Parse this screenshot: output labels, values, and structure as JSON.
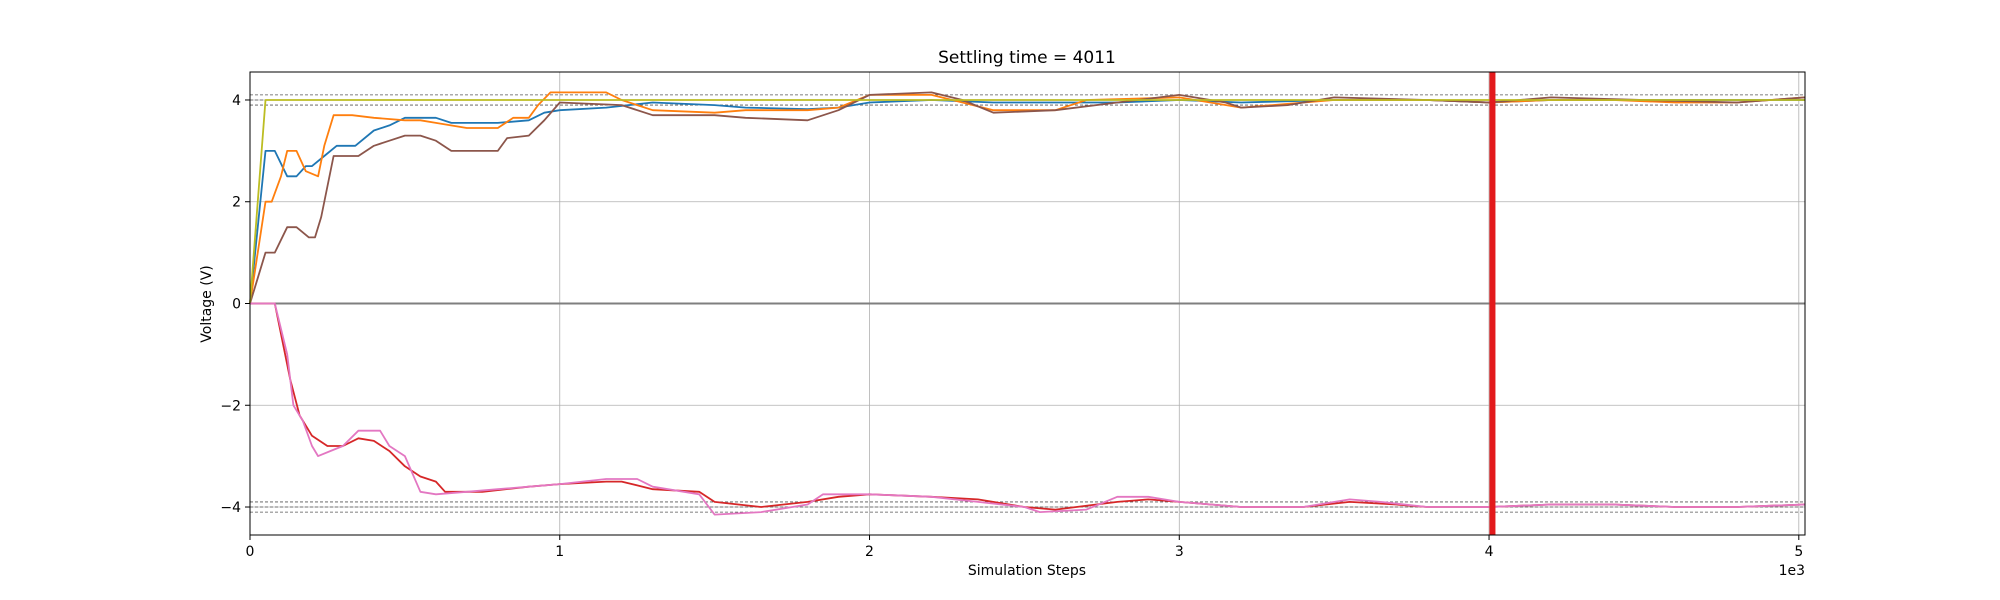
{
  "chart_data": {
    "type": "line",
    "title": "Settling time = 4011",
    "xlabel": "Simulation Steps",
    "ylabel": "Voltage (V)",
    "x_scale_label": "1e3",
    "xlim": [
      0,
      5.02
    ],
    "ylim": [
      -4.55,
      4.55
    ],
    "grid": true,
    "legend": "none",
    "x_ticks": [
      0,
      1,
      2,
      3,
      4,
      5
    ],
    "x_tick_labels": [
      "0",
      "1",
      "2",
      "3",
      "4",
      "5"
    ],
    "y_ticks": [
      -4,
      -2,
      0,
      2,
      4
    ],
    "y_tick_labels": [
      "−4",
      "−2",
      "0",
      "2",
      "4"
    ],
    "zero_line": 0,
    "settling_marker": {
      "x": 4.011,
      "color": "#e31a1c"
    },
    "tolerance_lines": [
      4.1,
      4.0,
      3.9,
      -3.9,
      -4.0,
      -4.1
    ],
    "series": [
      {
        "color": "#1f77b4",
        "points": [
          [
            0,
            0
          ],
          [
            0.05,
            3
          ],
          [
            0.08,
            3
          ],
          [
            0.12,
            2.5
          ],
          [
            0.15,
            2.5
          ],
          [
            0.18,
            2.7
          ],
          [
            0.2,
            2.7
          ],
          [
            0.24,
            2.9
          ],
          [
            0.28,
            3.1
          ],
          [
            0.34,
            3.1
          ],
          [
            0.4,
            3.4
          ],
          [
            0.45,
            3.5
          ],
          [
            0.5,
            3.65
          ],
          [
            0.6,
            3.65
          ],
          [
            0.65,
            3.55
          ],
          [
            0.75,
            3.55
          ],
          [
            0.8,
            3.55
          ],
          [
            0.9,
            3.6
          ],
          [
            0.95,
            3.75
          ],
          [
            1.0,
            3.8
          ],
          [
            1.15,
            3.85
          ],
          [
            1.3,
            3.95
          ],
          [
            1.5,
            3.9
          ],
          [
            1.6,
            3.85
          ],
          [
            1.8,
            3.82
          ],
          [
            1.9,
            3.85
          ],
          [
            2.0,
            3.95
          ],
          [
            2.2,
            4.0
          ],
          [
            2.4,
            3.95
          ],
          [
            2.6,
            3.95
          ],
          [
            2.8,
            3.95
          ],
          [
            3.0,
            4.0
          ],
          [
            3.2,
            3.95
          ],
          [
            3.5,
            4.0
          ],
          [
            3.8,
            4.0
          ],
          [
            4.0,
            3.95
          ],
          [
            4.2,
            4.0
          ],
          [
            4.5,
            4.0
          ],
          [
            4.8,
            4.0
          ],
          [
            5.02,
            4.0
          ]
        ]
      },
      {
        "color": "#ff7f0e",
        "points": [
          [
            0,
            0
          ],
          [
            0.05,
            2
          ],
          [
            0.07,
            2
          ],
          [
            0.1,
            2.5
          ],
          [
            0.12,
            3
          ],
          [
            0.15,
            3
          ],
          [
            0.18,
            2.6
          ],
          [
            0.22,
            2.5
          ],
          [
            0.24,
            3.1
          ],
          [
            0.27,
            3.7
          ],
          [
            0.33,
            3.7
          ],
          [
            0.4,
            3.65
          ],
          [
            0.5,
            3.6
          ],
          [
            0.55,
            3.6
          ],
          [
            0.6,
            3.55
          ],
          [
            0.7,
            3.45
          ],
          [
            0.8,
            3.45
          ],
          [
            0.85,
            3.65
          ],
          [
            0.9,
            3.65
          ],
          [
            0.93,
            3.9
          ],
          [
            0.97,
            4.15
          ],
          [
            1.15,
            4.15
          ],
          [
            1.2,
            4.0
          ],
          [
            1.3,
            3.8
          ],
          [
            1.5,
            3.75
          ],
          [
            1.6,
            3.8
          ],
          [
            1.8,
            3.8
          ],
          [
            1.9,
            3.85
          ],
          [
            2.0,
            4.1
          ],
          [
            2.2,
            4.1
          ],
          [
            2.3,
            3.95
          ],
          [
            2.4,
            3.8
          ],
          [
            2.6,
            3.8
          ],
          [
            2.7,
            4.0
          ],
          [
            3.0,
            4.05
          ],
          [
            3.1,
            3.95
          ],
          [
            3.2,
            3.85
          ],
          [
            3.3,
            3.9
          ],
          [
            3.5,
            4.0
          ],
          [
            3.8,
            4.0
          ],
          [
            4.0,
            3.95
          ],
          [
            4.2,
            4.0
          ],
          [
            4.4,
            4.0
          ],
          [
            4.6,
            3.95
          ],
          [
            4.8,
            3.95
          ],
          [
            5.02,
            4.05
          ]
        ]
      },
      {
        "color": "#8c564b",
        "points": [
          [
            0,
            0
          ],
          [
            0.05,
            1
          ],
          [
            0.08,
            1
          ],
          [
            0.12,
            1.5
          ],
          [
            0.15,
            1.5
          ],
          [
            0.19,
            1.3
          ],
          [
            0.21,
            1.3
          ],
          [
            0.23,
            1.7
          ],
          [
            0.25,
            2.3
          ],
          [
            0.27,
            2.9
          ],
          [
            0.35,
            2.9
          ],
          [
            0.4,
            3.1
          ],
          [
            0.45,
            3.2
          ],
          [
            0.5,
            3.3
          ],
          [
            0.55,
            3.3
          ],
          [
            0.6,
            3.2
          ],
          [
            0.65,
            3.0
          ],
          [
            0.75,
            3.0
          ],
          [
            0.8,
            3.0
          ],
          [
            0.83,
            3.25
          ],
          [
            0.9,
            3.3
          ],
          [
            0.95,
            3.6
          ],
          [
            1.0,
            3.95
          ],
          [
            1.2,
            3.9
          ],
          [
            1.3,
            3.7
          ],
          [
            1.5,
            3.7
          ],
          [
            1.6,
            3.65
          ],
          [
            1.8,
            3.6
          ],
          [
            1.9,
            3.8
          ],
          [
            2.0,
            4.1
          ],
          [
            2.2,
            4.15
          ],
          [
            2.3,
            4.0
          ],
          [
            2.4,
            3.75
          ],
          [
            2.6,
            3.8
          ],
          [
            2.8,
            3.95
          ],
          [
            3.0,
            4.1
          ],
          [
            3.15,
            3.95
          ],
          [
            3.2,
            3.85
          ],
          [
            3.35,
            3.9
          ],
          [
            3.5,
            4.05
          ],
          [
            3.8,
            4.0
          ],
          [
            4.0,
            3.95
          ],
          [
            4.2,
            4.05
          ],
          [
            4.5,
            4.0
          ],
          [
            4.8,
            3.95
          ],
          [
            5.02,
            4.05
          ]
        ]
      },
      {
        "color": "#bcbd22",
        "points": [
          [
            0,
            0
          ],
          [
            0.05,
            4
          ],
          [
            5.02,
            4
          ]
        ]
      },
      {
        "color": "#d62728",
        "points": [
          [
            0,
            0
          ],
          [
            0.08,
            0
          ],
          [
            0.13,
            -1.5
          ],
          [
            0.16,
            -2.2
          ],
          [
            0.2,
            -2.6
          ],
          [
            0.25,
            -2.8
          ],
          [
            0.3,
            -2.8
          ],
          [
            0.35,
            -2.65
          ],
          [
            0.4,
            -2.7
          ],
          [
            0.45,
            -2.9
          ],
          [
            0.5,
            -3.2
          ],
          [
            0.55,
            -3.4
          ],
          [
            0.6,
            -3.5
          ],
          [
            0.63,
            -3.7
          ],
          [
            0.75,
            -3.7
          ],
          [
            0.9,
            -3.6
          ],
          [
            1.0,
            -3.55
          ],
          [
            1.15,
            -3.5
          ],
          [
            1.2,
            -3.5
          ],
          [
            1.3,
            -3.65
          ],
          [
            1.45,
            -3.7
          ],
          [
            1.5,
            -3.9
          ],
          [
            1.65,
            -4.0
          ],
          [
            1.8,
            -3.9
          ],
          [
            1.9,
            -3.8
          ],
          [
            2.0,
            -3.75
          ],
          [
            2.2,
            -3.8
          ],
          [
            2.35,
            -3.85
          ],
          [
            2.5,
            -4.0
          ],
          [
            2.6,
            -4.05
          ],
          [
            2.8,
            -3.9
          ],
          [
            2.9,
            -3.85
          ],
          [
            3.0,
            -3.9
          ],
          [
            3.2,
            -4.0
          ],
          [
            3.4,
            -4.0
          ],
          [
            3.55,
            -3.9
          ],
          [
            3.7,
            -3.95
          ],
          [
            3.8,
            -4.0
          ],
          [
            4.0,
            -4.0
          ],
          [
            4.2,
            -3.95
          ],
          [
            4.4,
            -3.95
          ],
          [
            4.6,
            -4.0
          ],
          [
            4.8,
            -4.0
          ],
          [
            5.02,
            -3.95
          ]
        ]
      },
      {
        "color": "#e377c2",
        "points": [
          [
            0,
            0
          ],
          [
            0.08,
            0
          ],
          [
            0.12,
            -1.0
          ],
          [
            0.14,
            -2.0
          ],
          [
            0.17,
            -2.3
          ],
          [
            0.2,
            -2.8
          ],
          [
            0.22,
            -3.0
          ],
          [
            0.26,
            -2.9
          ],
          [
            0.3,
            -2.8
          ],
          [
            0.35,
            -2.5
          ],
          [
            0.42,
            -2.5
          ],
          [
            0.45,
            -2.8
          ],
          [
            0.5,
            -3.0
          ],
          [
            0.55,
            -3.7
          ],
          [
            0.6,
            -3.75
          ],
          [
            0.7,
            -3.7
          ],
          [
            0.8,
            -3.65
          ],
          [
            0.9,
            -3.6
          ],
          [
            1.0,
            -3.55
          ],
          [
            1.15,
            -3.45
          ],
          [
            1.25,
            -3.45
          ],
          [
            1.3,
            -3.6
          ],
          [
            1.45,
            -3.75
          ],
          [
            1.5,
            -4.15
          ],
          [
            1.65,
            -4.1
          ],
          [
            1.8,
            -3.95
          ],
          [
            1.85,
            -3.75
          ],
          [
            2.0,
            -3.75
          ],
          [
            2.2,
            -3.8
          ],
          [
            2.35,
            -3.9
          ],
          [
            2.5,
            -4.0
          ],
          [
            2.55,
            -4.1
          ],
          [
            2.7,
            -4.05
          ],
          [
            2.8,
            -3.8
          ],
          [
            2.9,
            -3.8
          ],
          [
            3.0,
            -3.9
          ],
          [
            3.2,
            -4.0
          ],
          [
            3.4,
            -4.0
          ],
          [
            3.55,
            -3.85
          ],
          [
            3.65,
            -3.9
          ],
          [
            3.8,
            -4.0
          ],
          [
            4.0,
            -4.0
          ],
          [
            4.2,
            -3.95
          ],
          [
            4.4,
            -3.95
          ],
          [
            4.6,
            -4.0
          ],
          [
            4.8,
            -4.0
          ],
          [
            5.02,
            -3.95
          ]
        ]
      }
    ]
  }
}
